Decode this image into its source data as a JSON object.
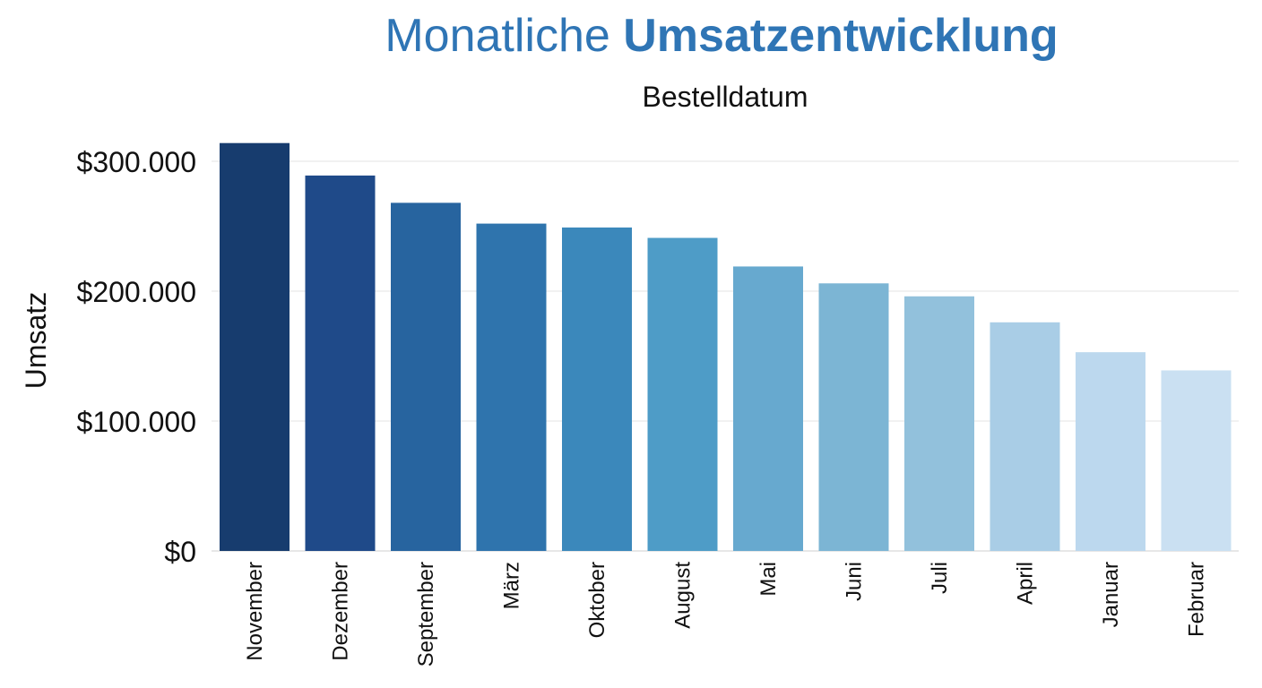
{
  "chart_data": {
    "type": "bar",
    "title_part1": "Monatliche",
    "title_part2": "Umsatzentwicklung",
    "subtitle": "Bestelldatum",
    "ylabel": "Umsatz",
    "ylim": [
      0,
      300000
    ],
    "y_ticks": [
      {
        "value": 0,
        "label": "$0"
      },
      {
        "value": 100000,
        "label": "$100.000"
      },
      {
        "value": 200000,
        "label": "$200.000"
      },
      {
        "value": 300000,
        "label": "$300.000"
      }
    ],
    "categories": [
      "November",
      "Dezember",
      "September",
      "März",
      "Oktober",
      "August",
      "Mai",
      "Juni",
      "Juli",
      "April",
      "Januar",
      "Februar"
    ],
    "values": [
      314000,
      289000,
      268000,
      252000,
      249000,
      241000,
      219000,
      206000,
      196000,
      176000,
      153000,
      139000
    ],
    "colors": [
      "#173c6e",
      "#1f4a89",
      "#27649f",
      "#2f74ad",
      "#3b88bb",
      "#4e9cc7",
      "#67a9cf",
      "#7cb5d4",
      "#92c1dc",
      "#a9cde6",
      "#bcd8ee",
      "#cae0f2"
    ],
    "grid": true,
    "legend": "none"
  }
}
